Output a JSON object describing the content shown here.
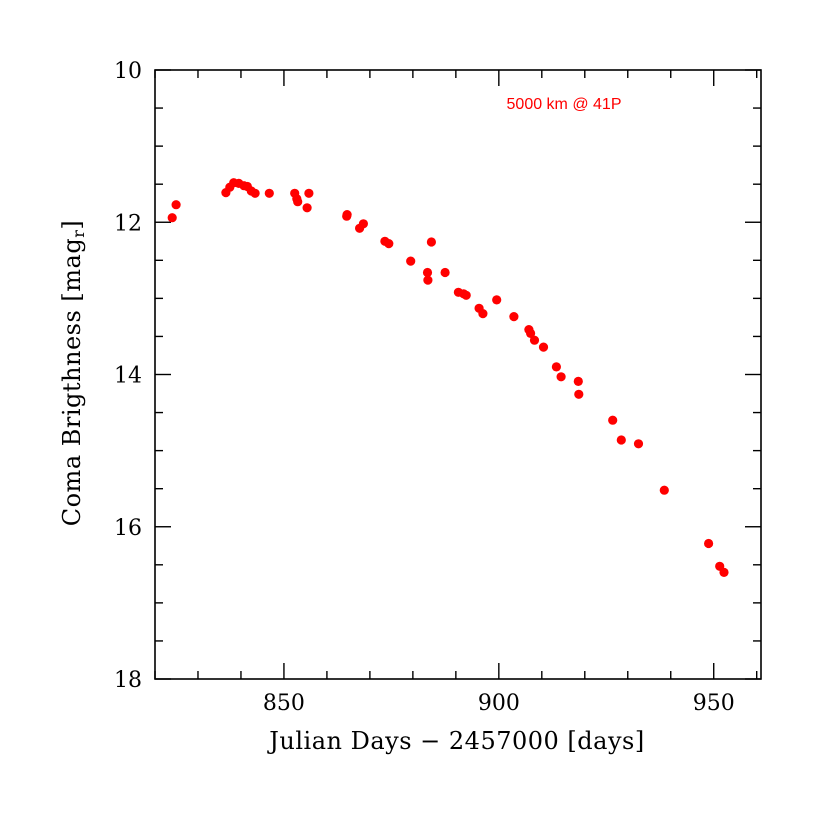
{
  "chart_data": {
    "type": "scatter",
    "xlabel": "Julian Days − 2457000 [days]",
    "ylabel_main": "Coma Brigthness [mag",
    "ylabel_sub": "r",
    "ylabel_end": "]",
    "xlim": [
      820,
      961
    ],
    "ylim": [
      18,
      10
    ],
    "y_inverted": true,
    "x_major_ticks": [
      850,
      900,
      950
    ],
    "x_minor_step": 10,
    "y_major_ticks": [
      10,
      12,
      14,
      16,
      18
    ],
    "y_minor_step": 0.5,
    "grid": false,
    "annotation": "5000 km @ 41P",
    "annotation_color": "#ff0000",
    "point_color": "#ff0000",
    "x": [
      824.0,
      824.9,
      836.5,
      837.4,
      838.3,
      839.5,
      840.7,
      841.5,
      842.4,
      843.3,
      846.6,
      852.5,
      853.0,
      853.2,
      855.4,
      855.8,
      864.6,
      864.7,
      867.6,
      868.5,
      873.5,
      874.4,
      879.5,
      883.4,
      883.5,
      884.3,
      887.5,
      890.6,
      891.8,
      892.4,
      895.4,
      896.3,
      899.5,
      903.5,
      907.0,
      907.4,
      908.3,
      910.4,
      913.4,
      914.5,
      918.5,
      918.6,
      926.5,
      928.5,
      932.5,
      938.5,
      948.8,
      951.4,
      952.4
    ],
    "y": [
      11.94,
      11.77,
      11.61,
      11.54,
      11.48,
      11.49,
      11.52,
      11.53,
      11.59,
      11.62,
      11.62,
      11.62,
      11.69,
      11.73,
      11.81,
      11.62,
      11.92,
      11.9,
      12.08,
      12.02,
      12.25,
      12.28,
      12.51,
      12.66,
      12.76,
      12.26,
      12.66,
      12.92,
      12.94,
      12.96,
      13.13,
      13.2,
      13.02,
      13.24,
      13.41,
      13.46,
      13.55,
      13.64,
      13.9,
      14.03,
      14.09,
      14.26,
      14.6,
      14.86,
      14.91,
      15.52,
      16.22,
      16.52,
      16.6
    ]
  }
}
